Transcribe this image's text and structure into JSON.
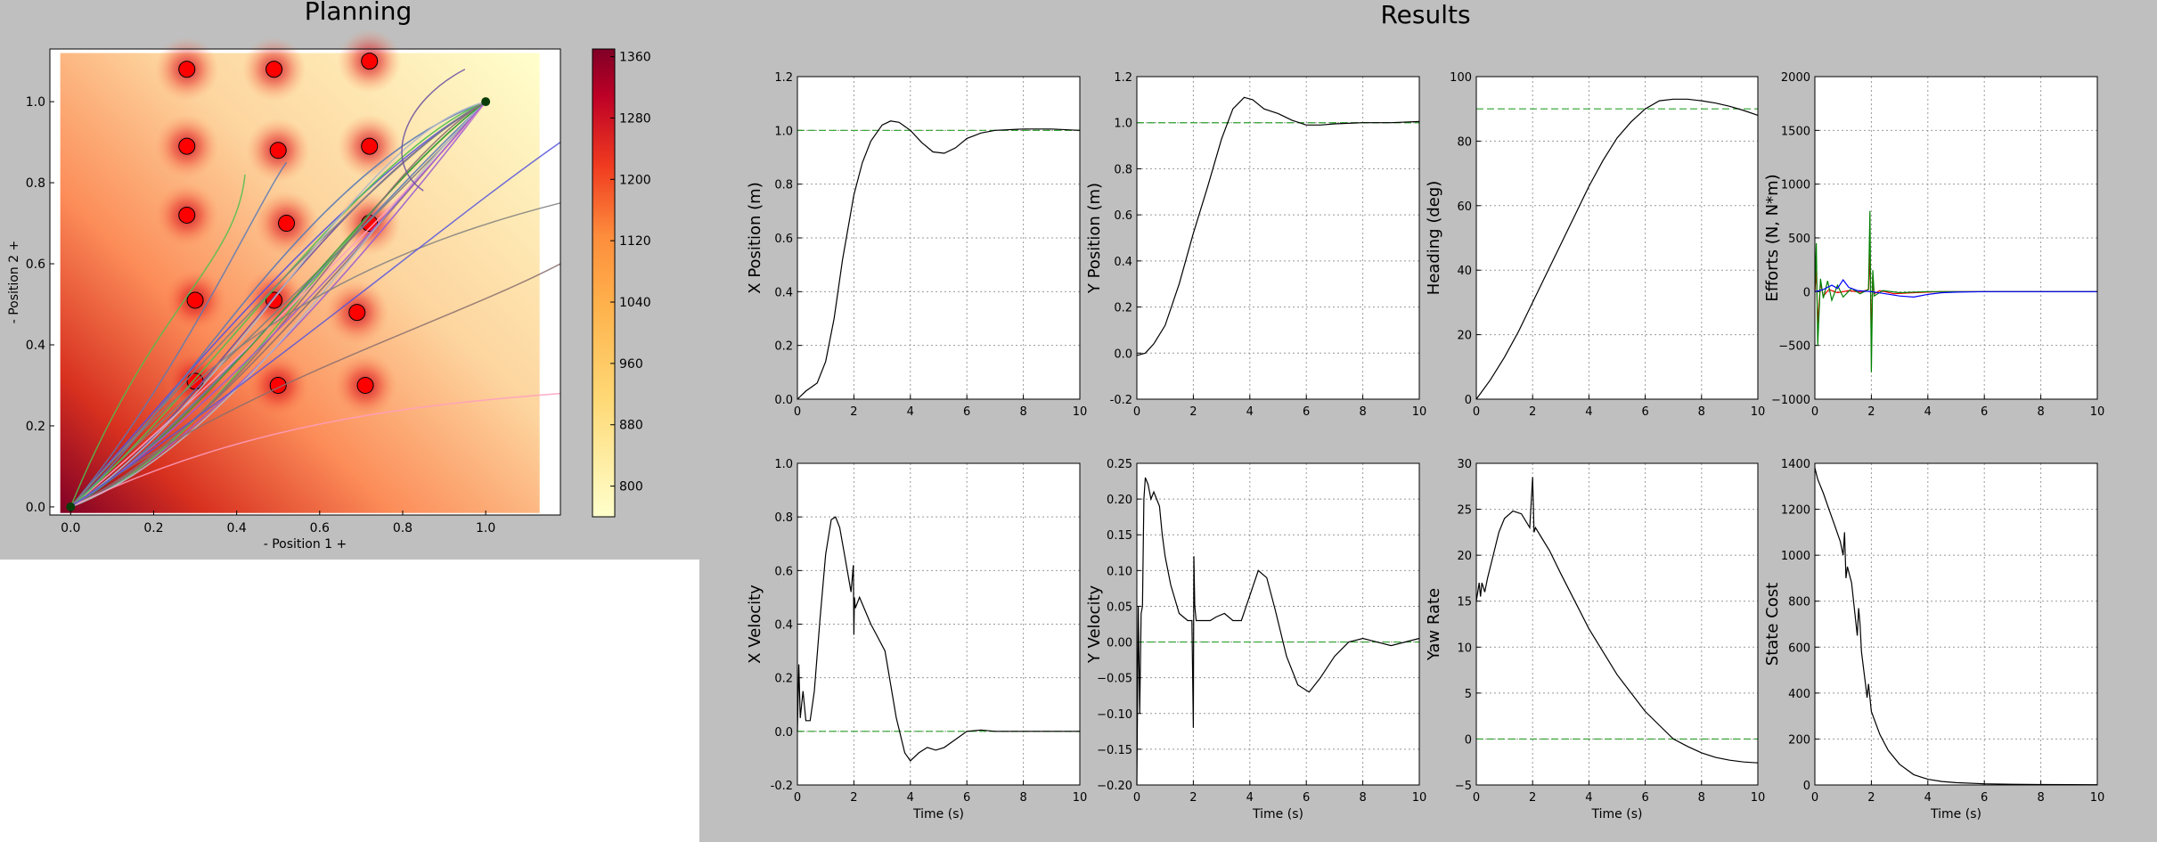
{
  "planning": {
    "title": "Planning",
    "xlabel": "- Position 1 +",
    "ylabel": "- Position 2 +",
    "xticks": [
      "0.0",
      "0.2",
      "0.4",
      "0.6",
      "0.8",
      "1.0"
    ],
    "yticks": [
      "0.0",
      "0.2",
      "0.4",
      "0.6",
      "0.8",
      "1.0"
    ],
    "colorbar_ticks": [
      "800",
      "880",
      "960",
      "1040",
      "1120",
      "1200",
      "1280",
      "1360"
    ]
  },
  "results": {
    "title": "Results"
  },
  "colors": {
    "background": "#bfbfbf",
    "reference": "#2ca02c",
    "trace": "#000000",
    "effort_x": "#ff0000",
    "effort_y": "#008000",
    "effort_heading": "#0000ff"
  },
  "chart_data": [
    {
      "type": "heatmap",
      "title": "Planning",
      "xlabel": "- Position 1 +",
      "ylabel": "- Position 2 +",
      "xlim": [
        -0.05,
        1.18
      ],
      "ylim": [
        -0.02,
        1.13
      ],
      "colorbar_range": [
        760,
        1370
      ],
      "obstacles": [
        [
          0.28,
          1.08
        ],
        [
          0.49,
          1.08
        ],
        [
          0.72,
          1.1
        ],
        [
          0.28,
          0.89
        ],
        [
          0.5,
          0.88
        ],
        [
          0.72,
          0.89
        ],
        [
          0.28,
          0.72
        ],
        [
          0.52,
          0.7
        ],
        [
          0.72,
          0.7
        ],
        [
          0.3,
          0.51
        ],
        [
          0.49,
          0.51
        ],
        [
          0.69,
          0.48
        ],
        [
          0.3,
          0.31
        ],
        [
          0.5,
          0.3
        ],
        [
          0.71,
          0.3
        ]
      ],
      "start": [
        0.0,
        0.0
      ],
      "goal": [
        1.0,
        1.0
      ]
    },
    {
      "type": "line",
      "xlabel": "",
      "ylabel": "X Position (m)",
      "xlim": [
        0,
        10
      ],
      "ylim": [
        0.0,
        1.2
      ],
      "xticks": [
        0,
        2,
        4,
        6,
        8,
        10
      ],
      "yticks": [
        0.0,
        0.2,
        0.4,
        0.6,
        0.8,
        1.0,
        1.2
      ],
      "ytick_labels": [
        "0.0",
        "0.2",
        "0.4",
        "0.6",
        "0.8",
        "1.0",
        "1.2"
      ],
      "reference": 1.0,
      "x": [
        0,
        0.3,
        0.7,
        1.0,
        1.3,
        1.6,
        2.0,
        2.3,
        2.6,
        3.0,
        3.3,
        3.6,
        4.0,
        4.4,
        4.8,
        5.2,
        5.6,
        6.0,
        6.5,
        7.0,
        8.0,
        9.0,
        10.0
      ],
      "values": [
        0.0,
        0.03,
        0.06,
        0.14,
        0.3,
        0.52,
        0.76,
        0.88,
        0.96,
        1.02,
        1.035,
        1.03,
        1.0,
        0.955,
        0.92,
        0.915,
        0.935,
        0.97,
        0.99,
        1.0,
        1.005,
        1.005,
        1.0
      ]
    },
    {
      "type": "line",
      "xlabel": "",
      "ylabel": "Y Position (m)",
      "xlim": [
        0,
        10
      ],
      "ylim": [
        -0.2,
        1.2
      ],
      "xticks": [
        0,
        2,
        4,
        6,
        8,
        10
      ],
      "yticks": [
        -0.2,
        0.0,
        0.2,
        0.4,
        0.6,
        0.8,
        1.0,
        1.2
      ],
      "ytick_labels": [
        "-0.2",
        "0.0",
        "0.2",
        "0.4",
        "0.6",
        "0.8",
        "1.0",
        "1.2"
      ],
      "reference": 1.0,
      "x": [
        0,
        0.3,
        0.6,
        1.0,
        1.5,
        2.0,
        2.5,
        3.0,
        3.4,
        3.8,
        4.1,
        4.5,
        5.0,
        5.5,
        6.0,
        6.5,
        7.0,
        8.0,
        9.0,
        10.0
      ],
      "values": [
        -0.01,
        0.0,
        0.04,
        0.12,
        0.3,
        0.52,
        0.72,
        0.93,
        1.06,
        1.11,
        1.1,
        1.06,
        1.04,
        1.01,
        0.99,
        0.99,
        0.995,
        1.0,
        1.0,
        1.005
      ]
    },
    {
      "type": "line",
      "xlabel": "",
      "ylabel": "Heading (deg)",
      "xlim": [
        0,
        10
      ],
      "ylim": [
        0,
        100
      ],
      "xticks": [
        0,
        2,
        4,
        6,
        8,
        10
      ],
      "yticks": [
        0,
        20,
        40,
        60,
        80,
        100
      ],
      "ytick_labels": [
        "0",
        "20",
        "40",
        "60",
        "80",
        "100"
      ],
      "reference": 90,
      "x": [
        0,
        0.5,
        1.0,
        1.5,
        2.0,
        2.5,
        3.0,
        3.5,
        4.0,
        4.5,
        5.0,
        5.5,
        6.0,
        6.5,
        7.0,
        7.5,
        8.0,
        8.5,
        9.0,
        9.5,
        10.0
      ],
      "values": [
        0,
        6,
        13,
        21,
        30,
        39,
        48,
        57,
        66,
        74,
        81,
        86,
        90,
        92.5,
        93,
        93,
        92.5,
        91.8,
        90.8,
        89.5,
        88
      ]
    },
    {
      "type": "line",
      "xlabel": "",
      "ylabel": "Efforts (N, N*m)",
      "xlim": [
        0,
        10
      ],
      "ylim": [
        -1000,
        2000
      ],
      "xticks": [
        0,
        2,
        4,
        6,
        8,
        10
      ],
      "yticks": [
        -1000,
        -500,
        0,
        500,
        1000,
        1500,
        2000
      ],
      "ytick_labels": [
        "−1000",
        "−500",
        "0",
        "500",
        "1000",
        "1500",
        "2000"
      ],
      "series": [
        {
          "color": "#ff0000",
          "x": [
            0,
            0.05,
            0.1,
            0.2,
            0.3,
            0.5,
            0.8,
            1.2,
            1.6,
            1.9,
            1.95,
            2.0,
            2.05,
            2.1,
            2.3,
            2.8,
            3.5,
            4.5,
            6.0,
            8.0,
            10.0
          ],
          "values": [
            0,
            200,
            -300,
            80,
            -40,
            20,
            -10,
            10,
            -5,
            20,
            350,
            -450,
            150,
            -20,
            10,
            -20,
            -10,
            0,
            0,
            0,
            0
          ]
        },
        {
          "color": "#008000",
          "x": [
            0,
            0.05,
            0.1,
            0.2,
            0.3,
            0.45,
            0.6,
            0.8,
            1.0,
            1.3,
            1.6,
            1.9,
            1.95,
            2.0,
            2.05,
            2.1,
            2.4,
            3.0,
            4.0,
            6.0,
            8.0,
            10.0
          ],
          "values": [
            0,
            450,
            -500,
            120,
            -60,
            100,
            -80,
            60,
            -50,
            30,
            -20,
            20,
            750,
            -750,
            200,
            -40,
            10,
            -10,
            0,
            0,
            0,
            0
          ]
        },
        {
          "color": "#0000ff",
          "x": [
            0,
            0.3,
            0.6,
            0.8,
            1.0,
            1.2,
            1.5,
            2.0,
            2.5,
            3.0,
            3.5,
            4.0,
            4.5,
            5.0,
            6.0,
            8.0,
            10.0
          ],
          "values": [
            0,
            20,
            60,
            30,
            110,
            40,
            10,
            0,
            -20,
            -40,
            -50,
            -25,
            -10,
            -5,
            0,
            0,
            0
          ]
        }
      ]
    },
    {
      "type": "line",
      "xlabel": "Time (s)",
      "ylabel": "X Velocity",
      "xlim": [
        0,
        10
      ],
      "ylim": [
        -0.2,
        1.0
      ],
      "xticks": [
        0,
        2,
        4,
        6,
        8,
        10
      ],
      "yticks": [
        -0.2,
        0.0,
        0.2,
        0.4,
        0.6,
        0.8,
        1.0
      ],
      "ytick_labels": [
        "-0.2",
        "0.0",
        "0.2",
        "0.4",
        "0.6",
        "0.8",
        "1.0"
      ],
      "reference": 0.0,
      "x": [
        0,
        0.05,
        0.1,
        0.2,
        0.3,
        0.45,
        0.6,
        0.8,
        1.0,
        1.2,
        1.35,
        1.5,
        1.7,
        1.9,
        1.98,
        2.0,
        2.02,
        2.05,
        2.2,
        2.4,
        2.6,
        2.8,
        3.1,
        3.5,
        3.8,
        4.0,
        4.3,
        4.6,
        4.9,
        5.2,
        5.6,
        6.0,
        6.5,
        7.0,
        8.0,
        9.0,
        10.0
      ],
      "values": [
        0.0,
        0.25,
        0.05,
        0.15,
        0.04,
        0.04,
        0.15,
        0.42,
        0.66,
        0.79,
        0.8,
        0.76,
        0.64,
        0.52,
        0.62,
        0.36,
        0.5,
        0.46,
        0.5,
        0.45,
        0.4,
        0.36,
        0.3,
        0.05,
        -0.08,
        -0.11,
        -0.08,
        -0.06,
        -0.07,
        -0.06,
        -0.03,
        0.0,
        0.005,
        0.0,
        0.0,
        0.0,
        0.0
      ]
    },
    {
      "type": "line",
      "xlabel": "Time (s)",
      "ylabel": "Y Velocity",
      "xlim": [
        0,
        10
      ],
      "ylim": [
        -0.2,
        0.25
      ],
      "xticks": [
        0,
        2,
        4,
        6,
        8,
        10
      ],
      "yticks": [
        -0.2,
        -0.15,
        -0.1,
        -0.05,
        0.0,
        0.05,
        0.1,
        0.15,
        0.2,
        0.25
      ],
      "ytick_labels": [
        "−0.20",
        "−0.15",
        "−0.10",
        "−0.05",
        "0.00",
        "0.05",
        "0.10",
        "0.15",
        "0.20",
        "0.25"
      ],
      "reference": 0.0,
      "x": [
        0,
        0.05,
        0.1,
        0.15,
        0.2,
        0.25,
        0.3,
        0.4,
        0.5,
        0.6,
        0.7,
        0.8,
        0.9,
        1.0,
        1.2,
        1.5,
        1.8,
        1.95,
        2.0,
        2.02,
        2.05,
        2.1,
        2.3,
        2.6,
        2.8,
        3.1,
        3.4,
        3.7,
        4.0,
        4.3,
        4.6,
        4.9,
        5.3,
        5.7,
        6.1,
        6.5,
        7.0,
        7.5,
        8.0,
        8.5,
        9.0,
        10.0
      ],
      "values": [
        -0.2,
        0.05,
        -0.1,
        0.04,
        0.05,
        0.2,
        0.23,
        0.22,
        0.2,
        0.21,
        0.2,
        0.19,
        0.15,
        0.12,
        0.08,
        0.04,
        0.03,
        0.03,
        -0.12,
        0.12,
        0.05,
        0.03,
        0.03,
        0.03,
        0.035,
        0.04,
        0.03,
        0.03,
        0.065,
        0.1,
        0.09,
        0.045,
        -0.02,
        -0.06,
        -0.07,
        -0.05,
        -0.02,
        0.0,
        0.005,
        0.0,
        -0.005,
        0.005
      ]
    },
    {
      "type": "line",
      "xlabel": "Time (s)",
      "ylabel": "Yaw Rate",
      "xlim": [
        0,
        10
      ],
      "ylim": [
        -5,
        30
      ],
      "xticks": [
        0,
        2,
        4,
        6,
        8,
        10
      ],
      "yticks": [
        -5,
        0,
        5,
        10,
        15,
        20,
        25,
        30
      ],
      "ytick_labels": [
        "−5",
        "0",
        "5",
        "10",
        "15",
        "20",
        "25",
        "30"
      ],
      "reference": 0,
      "x": [
        0,
        0.1,
        0.15,
        0.2,
        0.3,
        0.4,
        0.6,
        0.8,
        1.0,
        1.3,
        1.6,
        1.9,
        2.0,
        2.05,
        2.1,
        2.3,
        2.6,
        3.0,
        3.5,
        4.0,
        4.5,
        5.0,
        5.5,
        6.0,
        6.5,
        7.0,
        7.5,
        8.0,
        8.5,
        9.0,
        9.5,
        10.0
      ],
      "values": [
        15,
        17,
        15.5,
        17,
        16,
        17.5,
        20,
        22.5,
        24,
        24.8,
        24.5,
        23,
        28.5,
        22.5,
        23,
        22,
        20.5,
        18,
        15,
        12,
        9.5,
        7,
        5,
        3,
        1.5,
        0,
        -0.8,
        -1.5,
        -2,
        -2.3,
        -2.5,
        -2.6
      ]
    },
    {
      "type": "line",
      "xlabel": "Time (s)",
      "ylabel": "State Cost",
      "xlim": [
        0,
        10
      ],
      "ylim": [
        0,
        1400
      ],
      "xticks": [
        0,
        2,
        4,
        6,
        8,
        10
      ],
      "yticks": [
        0,
        200,
        400,
        600,
        800,
        1000,
        1200,
        1400
      ],
      "ytick_labels": [
        "0",
        "200",
        "400",
        "600",
        "800",
        "1000",
        "1200",
        "1400"
      ],
      "x": [
        0,
        0.1,
        0.3,
        0.5,
        0.7,
        0.9,
        1.0,
        1.05,
        1.1,
        1.15,
        1.3,
        1.5,
        1.55,
        1.6,
        1.65,
        1.8,
        1.85,
        1.9,
        2.0,
        2.3,
        2.6,
        3.0,
        3.5,
        4.0,
        4.5,
        5.0,
        6.0,
        7.0,
        8.0,
        10.0
      ],
      "values": [
        1380,
        1330,
        1270,
        1200,
        1130,
        1060,
        1000,
        1100,
        900,
        950,
        880,
        650,
        770,
        700,
        580,
        430,
        380,
        440,
        320,
        220,
        150,
        90,
        45,
        25,
        15,
        10,
        5,
        3,
        2,
        1
      ]
    }
  ]
}
